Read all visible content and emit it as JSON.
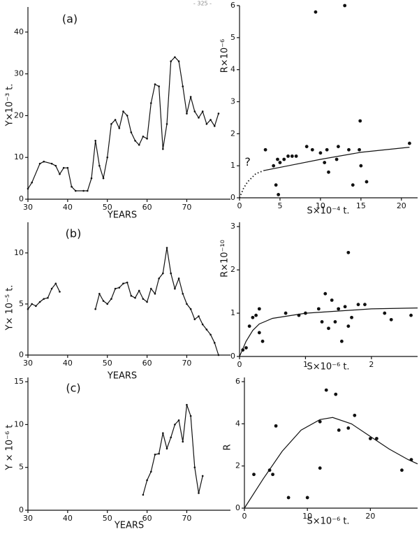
{
  "page_number": "- 325 -",
  "chart_data": [
    {
      "type": "line",
      "panel_label": "(a)",
      "xlabel": "YEARS",
      "ylabel": "Y×10⁻³ t.",
      "xlim": [
        30,
        81
      ],
      "ylim": [
        0,
        46
      ],
      "xticks": [
        30,
        40,
        50,
        60,
        70
      ],
      "yticks": [
        0,
        10,
        20,
        30,
        40
      ],
      "color": "#111",
      "x": [
        30,
        31,
        33,
        34,
        36,
        37,
        38,
        39,
        40,
        41,
        42,
        44,
        45,
        46,
        47,
        48,
        49,
        50,
        51,
        52,
        53,
        54,
        55,
        56,
        57,
        58,
        59,
        60,
        61,
        62,
        63,
        64,
        65,
        66,
        67,
        68,
        69,
        70,
        71,
        72,
        73,
        74,
        75,
        76,
        77,
        78
      ],
      "values": [
        2.5,
        4,
        8.5,
        9,
        8.5,
        8,
        6,
        7.5,
        7.5,
        3,
        2,
        2,
        2,
        5,
        14,
        8,
        5,
        10,
        18,
        19,
        17,
        21,
        20,
        16,
        14,
        13,
        15,
        14.5,
        23,
        27.5,
        27,
        12,
        18,
        33,
        34,
        33,
        27,
        20.5,
        24.5,
        21,
        19.5,
        21,
        18,
        19,
        17.5,
        20.5
      ]
    },
    {
      "type": "scatter",
      "xlabel": "S×10⁻⁴ t.",
      "ylabel": "R×10⁻⁶",
      "annotation": "?",
      "annotation_xy": [
        1,
        1.1
      ],
      "xlim": [
        0,
        22
      ],
      "ylim": [
        0,
        6
      ],
      "xticks": [
        0,
        5,
        10,
        15,
        20
      ],
      "yticks": [
        0,
        1,
        2,
        3,
        4,
        5,
        6
      ],
      "color": "#111",
      "series": [
        {
          "mode": "markers",
          "x": [
            3.2,
            4.2,
            4.7,
            5,
            5.5,
            4.5,
            4.8,
            6,
            6.5,
            7,
            8.3,
            9,
            9.4,
            10,
            10.5,
            10.8,
            11,
            12,
            12.2,
            13,
            13.5,
            14,
            14.8,
            14.9,
            15,
            15.7,
            21
          ],
          "values": [
            1.5,
            1.0,
            1.2,
            1.1,
            1.2,
            0.4,
            0.1,
            1.3,
            1.3,
            1.3,
            1.6,
            1.5,
            5.8,
            1.4,
            1.1,
            1.5,
            0.8,
            1.2,
            1.6,
            6,
            1.5,
            0.4,
            1.5,
            2.4,
            1.0,
            0.5,
            1.7
          ]
        },
        {
          "mode": "dotted",
          "x": [
            0,
            0.5,
            1,
            2,
            3
          ],
          "values": [
            0,
            0.3,
            0.5,
            0.75,
            0.85
          ]
        },
        {
          "mode": "lines",
          "x": [
            3,
            6,
            10,
            15,
            21
          ],
          "values": [
            0.85,
            1.0,
            1.2,
            1.42,
            1.58
          ]
        }
      ]
    },
    {
      "type": "line",
      "panel_label": "(b)",
      "xlabel": "YEARS",
      "ylabel": "Y× 10⁻⁵ t.",
      "xlim": [
        30,
        81
      ],
      "ylim": [
        0,
        13
      ],
      "xticks": [
        30,
        40,
        50,
        60,
        70
      ],
      "yticks": [
        0,
        5,
        10
      ],
      "color": "#111",
      "x": [
        30,
        31,
        32,
        33,
        34,
        35,
        36,
        37,
        38,
        39,
        40,
        41,
        42,
        43,
        44,
        45,
        46,
        47,
        48,
        49,
        50,
        51,
        52,
        53,
        54,
        55,
        56,
        57,
        58,
        59,
        60,
        61,
        62,
        63,
        64,
        65,
        66,
        67,
        68,
        69,
        70,
        71,
        72,
        73,
        74,
        75,
        76,
        77,
        78
      ],
      "values": [
        4.5,
        5,
        4.8,
        5.2,
        5.5,
        5.6,
        6.5,
        7,
        6.2,
        null,
        null,
        null,
        null,
        null,
        null,
        null,
        null,
        4.5,
        6,
        5.3,
        5,
        5.5,
        6.5,
        6.6,
        7,
        7.1,
        5.8,
        5.6,
        6.3,
        5.5,
        5.2,
        6.5,
        6,
        7.5,
        8,
        10.5,
        8,
        6.5,
        7.5,
        6,
        5,
        4.5,
        3.5,
        3.8,
        3,
        2.5,
        2,
        1.2,
        0
      ]
    },
    {
      "type": "scatter",
      "xlabel": "S×10⁻⁶ t.",
      "ylabel": "R×10⁻¹⁰",
      "xlim": [
        0,
        2.7
      ],
      "ylim": [
        0,
        3.1
      ],
      "xticks": [
        0,
        1,
        2
      ],
      "yticks": [
        0,
        1,
        2,
        3
      ],
      "color": "#111",
      "series": [
        {
          "mode": "markers",
          "x": [
            0.05,
            0.1,
            0.15,
            0.2,
            0.25,
            0.3,
            0.35,
            0.3,
            0.7,
            0.9,
            1.0,
            1.2,
            1.25,
            1.3,
            1.35,
            1.4,
            1.45,
            1.5,
            1.55,
            1.6,
            1.65,
            1.65,
            1.7,
            1.8,
            1.9,
            2.2,
            2.3,
            2.6
          ],
          "values": [
            0.15,
            0.2,
            0.7,
            0.9,
            0.95,
            0.55,
            0.35,
            1.1,
            1.0,
            0.95,
            1.0,
            1.1,
            0.8,
            1.45,
            0.65,
            1.3,
            0.8,
            1.1,
            0.35,
            1.15,
            2.4,
            0.7,
            0.9,
            1.2,
            1.2,
            1.0,
            0.85,
            0.95
          ]
        },
        {
          "mode": "lines",
          "x": [
            0,
            0.1,
            0.2,
            0.3,
            0.5,
            1,
            1.5,
            2,
            2.7
          ],
          "values": [
            0,
            0.35,
            0.6,
            0.75,
            0.88,
            1.0,
            1.05,
            1.1,
            1.12
          ]
        }
      ]
    },
    {
      "type": "line",
      "panel_label": "(c)",
      "xlabel": "YEARS",
      "ylabel": "Y × 10⁻⁶ t",
      "xlim": [
        30,
        81
      ],
      "ylim": [
        0,
        15.5
      ],
      "xticks": [
        30,
        40,
        50,
        60,
        70
      ],
      "yticks": [
        0,
        5,
        10,
        15
      ],
      "color": "#111",
      "x": [
        59,
        60,
        61,
        62,
        63,
        64,
        65,
        66,
        67,
        68,
        69,
        70,
        71,
        72,
        73,
        74
      ],
      "values": [
        1.8,
        3.5,
        4.5,
        6.5,
        6.6,
        9,
        7.2,
        8.5,
        10,
        10.5,
        8,
        12.3,
        11,
        5,
        2,
        4
      ]
    },
    {
      "type": "scatter",
      "xlabel": "S×10⁻⁶ t.",
      "ylabel": "R",
      "xlim": [
        0,
        27.5
      ],
      "ylim": [
        0,
        6.2
      ],
      "xticks": [
        0,
        10,
        20
      ],
      "yticks": [
        0,
        2,
        4,
        6
      ],
      "color": "#111",
      "series": [
        {
          "mode": "markers",
          "x": [
            1.5,
            4,
            4.5,
            5,
            7,
            10,
            12,
            12,
            13,
            14.5,
            15,
            16.5,
            17.5,
            20,
            21,
            25,
            26.5
          ],
          "values": [
            1.6,
            1.8,
            1.6,
            3.9,
            0.5,
            0.5,
            1.9,
            4.1,
            5.6,
            5.4,
            3.7,
            3.8,
            4.4,
            3.3,
            3.3,
            1.8,
            2.3
          ]
        },
        {
          "mode": "lines",
          "x": [
            0,
            3,
            6,
            9,
            12,
            14,
            17,
            20,
            23,
            26,
            27.5
          ],
          "values": [
            0,
            1.4,
            2.7,
            3.7,
            4.2,
            4.3,
            4.0,
            3.4,
            2.8,
            2.3,
            2.1
          ]
        }
      ]
    }
  ]
}
